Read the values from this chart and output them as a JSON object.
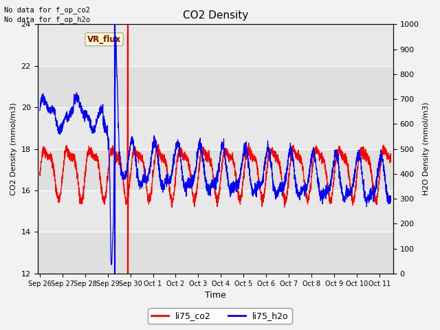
{
  "title": "CO2 Density",
  "xlabel": "Time",
  "ylabel_left": "CO2 Density (mmol/m3)",
  "ylabel_right": "H2O Density (mmol/m3)",
  "ylim_left": [
    12,
    24
  ],
  "ylim_right": [
    0,
    1000
  ],
  "yticks_left": [
    12,
    14,
    16,
    18,
    20,
    22,
    24
  ],
  "yticks_right": [
    0,
    100,
    200,
    300,
    400,
    500,
    600,
    700,
    800,
    900,
    1000
  ],
  "no_data_text1": "No data for f_op_co2",
  "no_data_text2": "No data for f_op_h2o",
  "vr_flux_label": "VR_flux",
  "legend_entries": [
    "li75_co2",
    "li75_h2o"
  ],
  "xtick_labels": [
    "Sep 26",
    "Sep 27",
    "Sep 28",
    "Sep 29",
    "Sep 30",
    "Oct 1",
    "Oct 2",
    "Oct 3",
    "Oct 4",
    "Oct 5",
    "Oct 6",
    "Oct 7",
    "Oct 8",
    "Oct 9",
    "Oct 10",
    "Oct 11"
  ],
  "bg_inner": "#e8e8e8",
  "bg_outer": "#f2f2f2",
  "grid_color": "white",
  "spike_co2_day": 3.88,
  "spike_h2o_day": 3.3
}
